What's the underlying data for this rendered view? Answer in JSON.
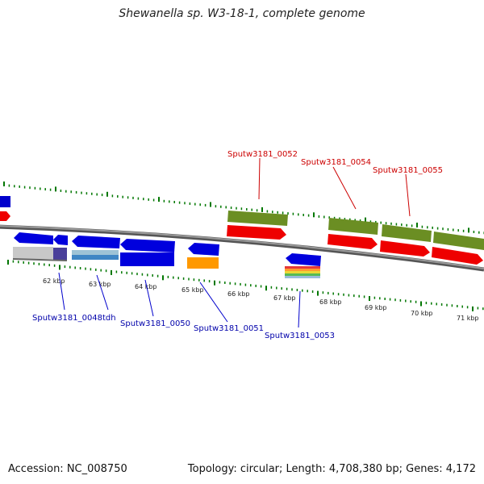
{
  "title": "Shewanella sp. W3-18-1, complete genome",
  "footer": {
    "accession": "Accession: NC_008750",
    "stats": "Topology: circular; Length: 4,708,380 bp; Genes: 4,172"
  },
  "colors": {
    "forward_cds": "#ff0000",
    "reverse_cds": "#0000ff",
    "olive_track": "#6b8e23",
    "orange_track": "#ff9900",
    "forward_tick": "#007700",
    "backbone": "#808080",
    "forward_label": "#cc0000",
    "reverse_label": "#0000aa"
  },
  "ticks": [
    "62 kbp",
    "63 kbp",
    "64 kbp",
    "65 kbp",
    "66 kbp",
    "67 kbp",
    "68 kbp",
    "69 kbp",
    "70 kbp",
    "71 kbp"
  ],
  "forward_labels": [
    "Sputw3181_0052",
    "Sputw3181_0054",
    "Sputw3181_0055"
  ],
  "reverse_labels": [
    "Sputw3181_0048",
    "tdh",
    "Sputw3181_0050",
    "Sputw3181_0051",
    "Sputw3181_0053"
  ]
}
